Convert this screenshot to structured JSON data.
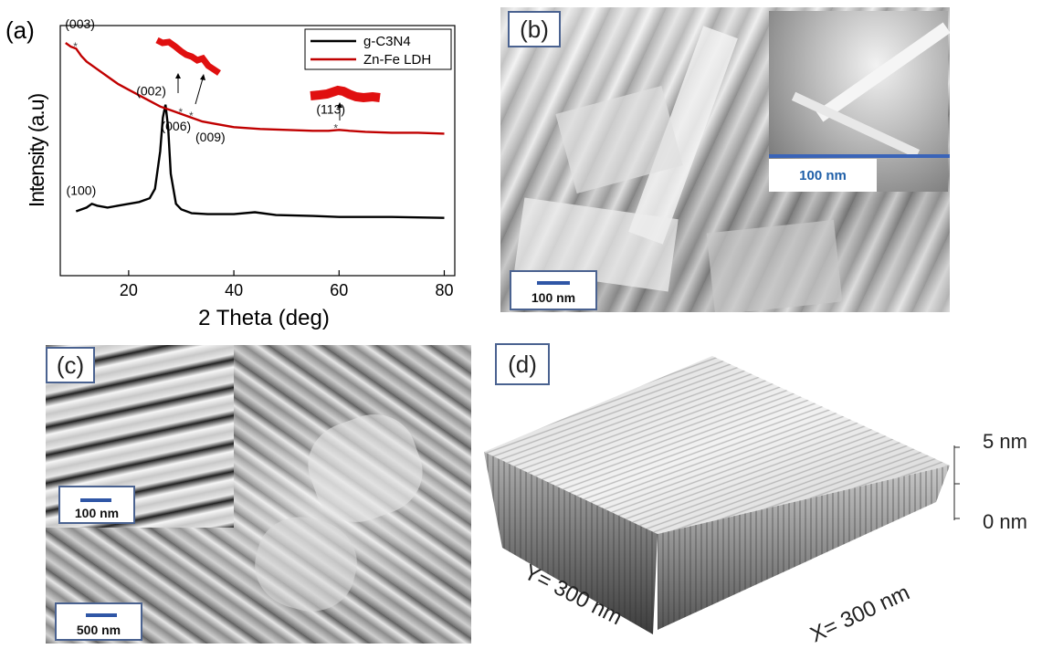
{
  "panel_a": {
    "tag": "(a)",
    "chart_data": {
      "type": "line",
      "xlabel": "2 Theta (deg)",
      "ylabel": "Intensity (a.u)",
      "xlim": [
        7,
        82
      ],
      "xticks": [
        20,
        40,
        60,
        80
      ],
      "legend_position": "top-right",
      "series": [
        {
          "name": "g-C3N4",
          "color": "#000000",
          "x": [
            10,
            12,
            13,
            14,
            16,
            18,
            20,
            22,
            24,
            25,
            26,
            26.5,
            27,
            27.5,
            28,
            29,
            30,
            32,
            35,
            40,
            44,
            48,
            55,
            60,
            70,
            80
          ],
          "y": [
            0.1,
            0.12,
            0.14,
            0.13,
            0.12,
            0.13,
            0.14,
            0.15,
            0.17,
            0.22,
            0.42,
            0.6,
            0.67,
            0.55,
            0.3,
            0.14,
            0.11,
            0.09,
            0.085,
            0.085,
            0.095,
            0.08,
            0.075,
            0.07,
            0.07,
            0.065
          ]
        },
        {
          "name": "Zn-Fe LDH",
          "color": "#c00000",
          "x": [
            8,
            9,
            10,
            11,
            12,
            14,
            16,
            18,
            20,
            22,
            24,
            26,
            28,
            30,
            32,
            34,
            36,
            40,
            45,
            50,
            55,
            58,
            60,
            62,
            65,
            70,
            75,
            80
          ],
          "y": [
            1.0,
            0.98,
            0.97,
            0.93,
            0.9,
            0.86,
            0.82,
            0.78,
            0.75,
            0.72,
            0.69,
            0.66,
            0.64,
            0.62,
            0.6,
            0.58,
            0.57,
            0.55,
            0.54,
            0.535,
            0.53,
            0.53,
            0.535,
            0.53,
            0.525,
            0.52,
            0.52,
            0.515
          ]
        }
      ],
      "annotations": [
        {
          "label": "(003)",
          "x": 10,
          "series": "Zn-Fe LDH"
        },
        {
          "label": "(006)",
          "x": 30,
          "series": "Zn-Fe LDH"
        },
        {
          "label": "(009)",
          "x": 32,
          "series": "Zn-Fe LDH"
        },
        {
          "label": "(113)",
          "x": 59.5,
          "series": "Zn-Fe LDH"
        },
        {
          "label": "(002)",
          "x": 27,
          "series": "g-C3N4"
        },
        {
          "label": "(100)",
          "x": 13,
          "series": "g-C3N4"
        }
      ]
    }
  },
  "panel_b": {
    "tag": "(b)",
    "scale_main": "100 nm",
    "scale_inset": "100 nm"
  },
  "panel_c": {
    "tag": "(c)",
    "scale_inset": "100 nm",
    "scale_main": "500 nm"
  },
  "panel_d": {
    "tag": "(d)",
    "z_top": "5 nm",
    "z_bottom": "0 nm",
    "y_axis": "Y= 300 nm",
    "x_axis": "X= 300 nm"
  }
}
